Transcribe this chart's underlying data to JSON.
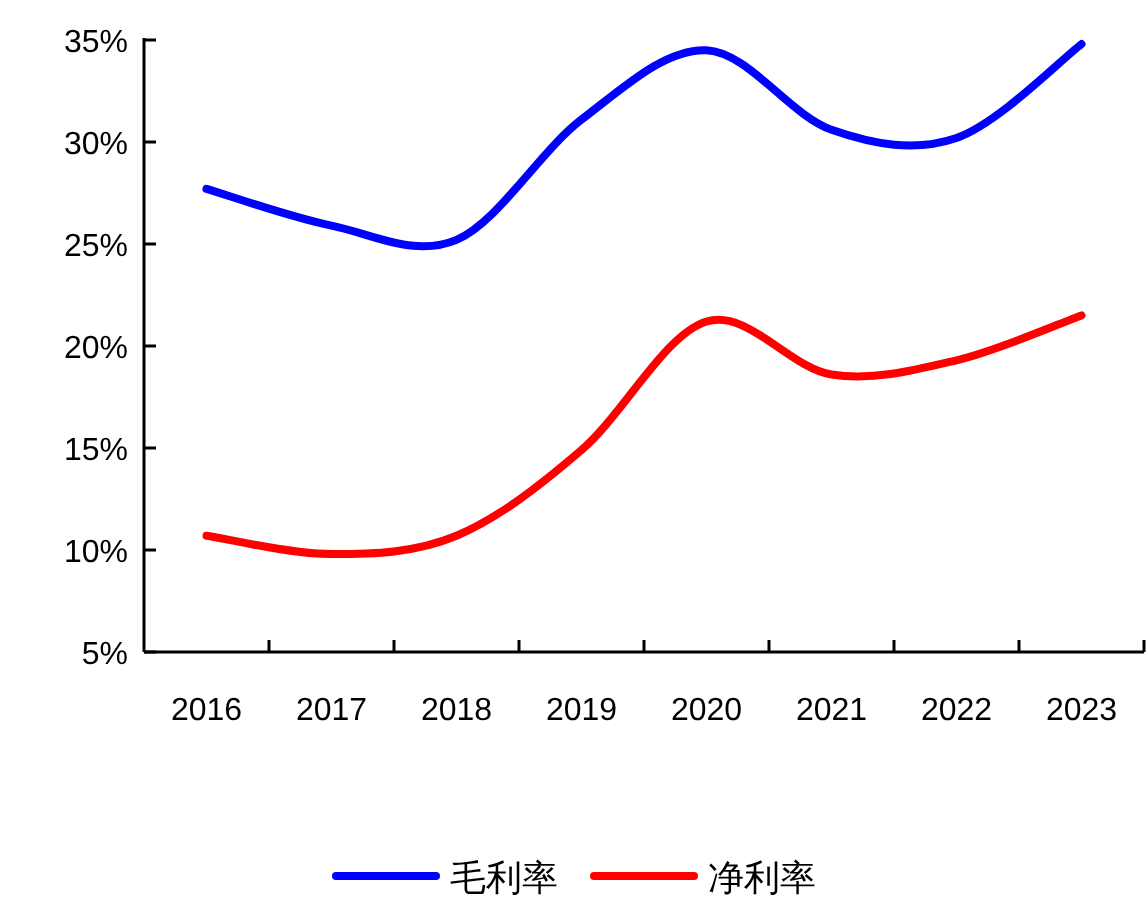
{
  "chart_data": {
    "type": "line",
    "categories": [
      "2016",
      "2017",
      "2018",
      "2019",
      "2020",
      "2021",
      "2022",
      "2023"
    ],
    "series": [
      {
        "name": "毛利率",
        "color": "#0000ff",
        "values": [
          27.7,
          25.9,
          25.2,
          31.1,
          34.5,
          30.6,
          30.2,
          34.8
        ]
      },
      {
        "name": "净利率",
        "color": "#ff0000",
        "values": [
          10.7,
          9.8,
          10.7,
          14.9,
          21.2,
          18.6,
          19.3,
          21.5
        ]
      }
    ],
    "ylim": [
      5,
      35
    ],
    "yticks": [
      {
        "value": 5,
        "label": "5%"
      },
      {
        "value": 10,
        "label": "10%"
      },
      {
        "value": 15,
        "label": "15%"
      },
      {
        "value": 20,
        "label": "20%"
      },
      {
        "value": 25,
        "label": "25%"
      },
      {
        "value": 30,
        "label": "30%"
      },
      {
        "value": 35,
        "label": "35%"
      }
    ],
    "grid": false,
    "legend": "bottom"
  }
}
